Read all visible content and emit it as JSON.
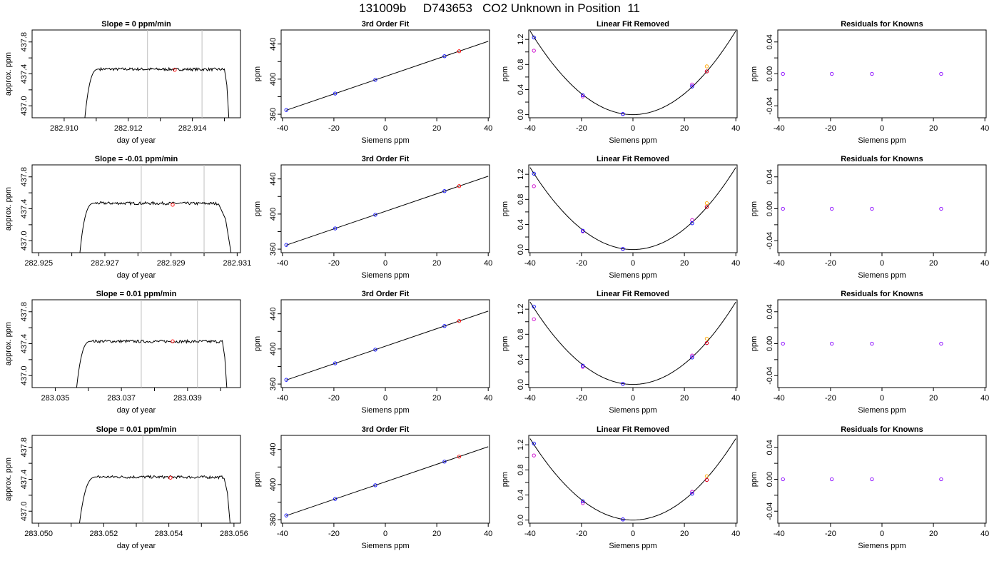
{
  "page": {
    "title": "131009b     D743653   CO2 Unknown in Position  11"
  },
  "colors": {
    "trace": "#000000",
    "marker_line": "#bfbfbf",
    "point_red": "#ff0000",
    "point_blue": "#0000ff",
    "point_magenta": "#cc00cc",
    "point_purple": "#8800ff",
    "point_orange": "#ffa500"
  },
  "chart_data": [
    {
      "row": 1,
      "type": "line",
      "title": "Slope =  0  ppm/min",
      "xlabel": "day of year",
      "ylabel": "approx. ppm",
      "xlim": [
        282.909,
        282.9155
      ],
      "xticks": [
        "282.910",
        "282.912",
        "282.914"
      ],
      "xtick_values": [
        282.91,
        282.912,
        282.914
      ],
      "xminor": [
        282.911,
        282.913,
        282.915
      ],
      "ylim": [
        436.85,
        437.95
      ],
      "yticks": [
        "437.0",
        "437.4",
        "437.8"
      ],
      "ytick_values": [
        437.0,
        437.4,
        437.8
      ],
      "yminor": [
        437.2,
        437.6
      ],
      "rise_start": 282.9106,
      "plateau_start": 282.9111,
      "fall_start": 282.915,
      "fall_end": 282.91515,
      "plateau": 437.46,
      "vlines": [
        282.9126,
        282.9143
      ],
      "marker": {
        "x": 282.91345,
        "y": 437.45
      }
    },
    {
      "row": 1,
      "type": "scatter",
      "title": "3rd Order Fit",
      "xlabel": "Siemens ppm",
      "ylabel": "ppm",
      "xlim": [
        -40.5,
        40.5
      ],
      "xticks": [
        "-40",
        "-20",
        "0",
        "20",
        "40"
      ],
      "xtick_values": [
        -40,
        -20,
        0,
        20,
        40
      ],
      "ylim": [
        356,
        456
      ],
      "yticks": [
        "360",
        "400",
        "440"
      ],
      "ytick_values": [
        360,
        400,
        440
      ],
      "yminor": [
        380,
        420
      ],
      "fit": {
        "intercept": 403.1,
        "slope": 1.0
      },
      "knowns": {
        "x": [
          -38.5,
          -19.5,
          -3.9,
          23,
          28.7
        ],
        "y": [
          364.8,
          383.6,
          399.2,
          426.1,
          431.8
        ]
      }
    },
    {
      "row": 1,
      "type": "scatter",
      "title": "Linear Fit Removed",
      "xlabel": "Siemens ppm",
      "ylabel": "ppm",
      "xlim": [
        -40.5,
        40.5
      ],
      "xticks": [
        "-40",
        "-20",
        "0",
        "20",
        "40"
      ],
      "xtick_values": [
        -40,
        -20,
        0,
        20,
        40
      ],
      "ylim": [
        -0.05,
        1.35
      ],
      "yticks": [
        "0.0",
        "0.4",
        "0.8",
        "1.2"
      ],
      "ytick_values": [
        0,
        0.4,
        0.8,
        1.2
      ],
      "yminor": [
        0.2,
        0.6,
        1.0
      ],
      "curve_k": 0.000835,
      "blue": {
        "x": [
          -38.5,
          -19.5,
          -3.9,
          23,
          28.7
        ],
        "y": [
          1.23,
          0.31,
          0.01,
          0.45,
          0.69
        ]
      },
      "magenta": {
        "x": [
          -38.5,
          -19.5,
          -3.9,
          23
        ],
        "y": [
          1.02,
          0.29,
          0.01,
          0.48
        ]
      },
      "red": {
        "x": [
          28.7
        ],
        "y": [
          0.69
        ]
      },
      "orange": {
        "x": [
          28.7
        ],
        "y": [
          0.77
        ]
      }
    },
    {
      "row": 1,
      "type": "scatter",
      "title": "Residuals for Knowns",
      "xlabel": "Siemens ppm",
      "ylabel": "ppm",
      "xlim": [
        -40.5,
        40.5
      ],
      "xticks": [
        "-40",
        "-20",
        "0",
        "20",
        "40"
      ],
      "xtick_values": [
        -40,
        -20,
        0,
        20,
        40
      ],
      "ylim": [
        -0.055,
        0.055
      ],
      "yticks": [
        "-0.04",
        "0.00",
        "0.04"
      ],
      "ytick_values": [
        -0.04,
        0,
        0.04
      ],
      "yminor": [
        -0.02,
        0.02
      ],
      "residuals": {
        "x": [
          -38.5,
          -19.5,
          -3.9,
          23
        ],
        "y": [
          0,
          0,
          0,
          0
        ]
      }
    },
    {
      "row": 2,
      "type": "line",
      "title": "Slope =  -0.01  ppm/min",
      "xlabel": "day of year",
      "ylabel": "approx. ppm",
      "xlim": [
        282.9248,
        282.9311
      ],
      "xticks": [
        "282.925",
        "282.927",
        "282.929",
        "282.931"
      ],
      "xtick_values": [
        282.925,
        282.927,
        282.929,
        282.931
      ],
      "xminor": [
        282.926,
        282.928,
        282.93
      ],
      "ylim": [
        436.85,
        437.95
      ],
      "yticks": [
        "437.0",
        "437.4",
        "437.8"
      ],
      "ytick_values": [
        437.0,
        437.4,
        437.8
      ],
      "yminor": [
        437.2,
        437.6
      ],
      "rise_start": 282.9262,
      "plateau_start": 282.9267,
      "fall_start": 282.93045,
      "fall_end": 282.93085,
      "plateau": 437.47,
      "vlines": [
        282.9281,
        282.93
      ],
      "marker": {
        "x": 282.92905,
        "y": 437.45
      }
    },
    {
      "row": 2,
      "type": "scatter",
      "title": "3rd Order Fit",
      "xlabel": "Siemens ppm",
      "ylabel": "ppm",
      "xlim": [
        -40.5,
        40.5
      ],
      "xticks": [
        "-40",
        "-20",
        "0",
        "20",
        "40"
      ],
      "xtick_values": [
        -40,
        -20,
        0,
        20,
        40
      ],
      "ylim": [
        356,
        456
      ],
      "yticks": [
        "360",
        "400",
        "440"
      ],
      "ytick_values": [
        360,
        400,
        440
      ],
      "yminor": [
        380,
        420
      ],
      "fit": {
        "intercept": 403.1,
        "slope": 1.0
      },
      "knowns": {
        "x": [
          -38.5,
          -19.5,
          -3.9,
          23,
          28.7
        ],
        "y": [
          364.8,
          383.6,
          399.2,
          426.1,
          431.8
        ]
      }
    },
    {
      "row": 2,
      "type": "scatter",
      "title": "Linear Fit Removed",
      "xlabel": "Siemens ppm",
      "ylabel": "ppm",
      "xlim": [
        -40.5,
        40.5
      ],
      "xticks": [
        "-40",
        "-20",
        "0",
        "20",
        "40"
      ],
      "xtick_values": [
        -40,
        -20,
        0,
        20,
        40
      ],
      "ylim": [
        -0.05,
        1.35
      ],
      "yticks": [
        "0.0",
        "0.4",
        "0.8",
        "1.2"
      ],
      "ytick_values": [
        0,
        0.4,
        0.8,
        1.2
      ],
      "yminor": [
        0.2,
        0.6,
        1.0
      ],
      "curve_k": 0.000818,
      "blue": {
        "x": [
          -38.5,
          -19.5,
          -3.9,
          23,
          28.7
        ],
        "y": [
          1.21,
          0.3,
          0.01,
          0.42,
          0.68
        ]
      },
      "magenta": {
        "x": [
          -38.5,
          -19.5,
          -3.9,
          23
        ],
        "y": [
          1.01,
          0.29,
          0.01,
          0.47
        ]
      },
      "red": {
        "x": [
          28.7
        ],
        "y": [
          0.68
        ]
      },
      "orange": {
        "x": [
          28.7
        ],
        "y": [
          0.74
        ]
      }
    },
    {
      "row": 2,
      "type": "scatter",
      "title": "Residuals for Knowns",
      "xlabel": "Siemens ppm",
      "ylabel": "ppm",
      "xlim": [
        -40.5,
        40.5
      ],
      "xticks": [
        "-40",
        "-20",
        "0",
        "20",
        "40"
      ],
      "xtick_values": [
        -40,
        -20,
        0,
        20,
        40
      ],
      "ylim": [
        -0.055,
        0.055
      ],
      "yticks": [
        "-0.04",
        "0.00",
        "0.04"
      ],
      "ytick_values": [
        -0.04,
        0,
        0.04
      ],
      "yminor": [
        -0.02,
        0.02
      ],
      "residuals": {
        "x": [
          -38.5,
          -19.5,
          -3.9,
          23
        ],
        "y": [
          0,
          0,
          0,
          0
        ]
      }
    },
    {
      "row": 3,
      "type": "line",
      "title": "Slope =  0.01  ppm/min",
      "xlabel": "day of year",
      "ylabel": "approx. ppm",
      "xlim": [
        283.0343,
        283.0406
      ],
      "xticks": [
        "283.035",
        "283.037",
        "283.039"
      ],
      "xtick_values": [
        283.035,
        283.037,
        283.039
      ],
      "xminor": [
        283.036,
        283.038,
        283.04
      ],
      "ylim": [
        436.85,
        437.95
      ],
      "yticks": [
        "437.0",
        "437.4",
        "437.8"
      ],
      "ytick_values": [
        437.0,
        437.4,
        437.8
      ],
      "yminor": [
        437.2,
        437.6
      ],
      "rise_start": 283.0356,
      "plateau_start": 283.0361,
      "fall_start": 283.04005,
      "fall_end": 283.0402,
      "plateau": 437.43,
      "vlines": [
        283.0376,
        283.0393
      ],
      "marker": {
        "x": 283.03855,
        "y": 437.43
      }
    },
    {
      "row": 3,
      "type": "scatter",
      "title": "3rd Order Fit",
      "xlabel": "Siemens ppm",
      "ylabel": "ppm",
      "xlim": [
        -40.5,
        40.5
      ],
      "xticks": [
        "-40",
        "-20",
        "0",
        "20",
        "40"
      ],
      "xtick_values": [
        -40,
        -20,
        0,
        20,
        40
      ],
      "ylim": [
        356,
        456
      ],
      "yticks": [
        "360",
        "400",
        "440"
      ],
      "ytick_values": [
        360,
        400,
        440
      ],
      "yminor": [
        380,
        420
      ],
      "fit": {
        "intercept": 403.1,
        "slope": 1.0
      },
      "knowns": {
        "x": [
          -38.5,
          -19.5,
          -3.9,
          23,
          28.7
        ],
        "y": [
          364.8,
          383.6,
          399.2,
          426.1,
          431.8
        ]
      }
    },
    {
      "row": 3,
      "type": "scatter",
      "title": "Linear Fit Removed",
      "xlabel": "Siemens ppm",
      "ylabel": "ppm",
      "xlim": [
        -40.5,
        40.5
      ],
      "xticks": [
        "-40",
        "-20",
        "0",
        "20",
        "40"
      ],
      "xtick_values": [
        -40,
        -20,
        0,
        20,
        40
      ],
      "ylim": [
        -0.05,
        1.35
      ],
      "yticks": [
        "0.0",
        "0.4",
        "0.8",
        "1.2"
      ],
      "ytick_values": [
        0,
        0.4,
        0.8,
        1.2
      ],
      "yminor": [
        0.2,
        0.6,
        1.0
      ],
      "curve_k": 0.000822,
      "blue": {
        "x": [
          -38.5,
          -19.5,
          -3.9,
          23,
          28.7
        ],
        "y": [
          1.24,
          0.3,
          0.01,
          0.43,
          0.66
        ]
      },
      "magenta": {
        "x": [
          -38.5,
          -19.5,
          -3.9,
          23
        ],
        "y": [
          1.04,
          0.28,
          0.01,
          0.46
        ]
      },
      "red": {
        "x": [
          28.7
        ],
        "y": [
          0.66
        ]
      },
      "orange": {
        "x": [
          28.7
        ],
        "y": [
          0.73
        ]
      }
    },
    {
      "row": 3,
      "type": "scatter",
      "title": "Residuals for Knowns",
      "xlabel": "Siemens ppm",
      "ylabel": "ppm",
      "xlim": [
        -40.5,
        40.5
      ],
      "xticks": [
        "-40",
        "-20",
        "0",
        "20",
        "40"
      ],
      "xtick_values": [
        -40,
        -20,
        0,
        20,
        40
      ],
      "ylim": [
        -0.055,
        0.055
      ],
      "yticks": [
        "-0.04",
        "0.00",
        "0.04"
      ],
      "ytick_values": [
        -0.04,
        0,
        0.04
      ],
      "yminor": [
        -0.02,
        0.02
      ],
      "residuals": {
        "x": [
          -38.5,
          -19.5,
          -3.9,
          23
        ],
        "y": [
          0,
          0,
          0,
          0
        ]
      }
    },
    {
      "row": 4,
      "type": "line",
      "title": "Slope =  0.01  ppm/min",
      "xlabel": "day of year",
      "ylabel": "approx. ppm",
      "xlim": [
        283.0498,
        283.0562
      ],
      "xticks": [
        "283.050",
        "283.052",
        "283.054",
        "283.056"
      ],
      "xtick_values": [
        283.05,
        283.052,
        283.054,
        283.056
      ],
      "xminor": [
        283.051,
        283.053,
        283.055
      ],
      "ylim": [
        436.85,
        437.95
      ],
      "yticks": [
        "437.0",
        "437.4",
        "437.8"
      ],
      "ytick_values": [
        437.0,
        437.4,
        437.8
      ],
      "yminor": [
        437.2,
        437.6
      ],
      "rise_start": 283.0512,
      "plateau_start": 283.0518,
      "fall_start": 283.0557,
      "fall_end": 283.0559,
      "plateau": 437.43,
      "vlines": [
        283.0532,
        283.0549
      ],
      "marker": {
        "x": 283.05405,
        "y": 437.42
      }
    },
    {
      "row": 4,
      "type": "scatter",
      "title": "3rd Order Fit",
      "xlabel": "Siemens ppm",
      "ylabel": "ppm",
      "xlim": [
        -40.5,
        40.5
      ],
      "xticks": [
        "-40",
        "-20",
        "0",
        "20",
        "40"
      ],
      "xtick_values": [
        -40,
        -20,
        0,
        20,
        40
      ],
      "ylim": [
        356,
        456
      ],
      "yticks": [
        "360",
        "400",
        "440"
      ],
      "ytick_values": [
        360,
        400,
        440
      ],
      "yminor": [
        380,
        420
      ],
      "fit": {
        "intercept": 403.1,
        "slope": 1.0
      },
      "knowns": {
        "x": [
          -38.5,
          -19.5,
          -3.9,
          23,
          28.7
        ],
        "y": [
          364.8,
          383.6,
          399.2,
          426.1,
          431.8
        ]
      }
    },
    {
      "row": 4,
      "type": "scatter",
      "title": "Linear Fit Removed",
      "xlabel": "Siemens ppm",
      "ylabel": "ppm",
      "xlim": [
        -40.5,
        40.5
      ],
      "xticks": [
        "-40",
        "-20",
        "0",
        "20",
        "40"
      ],
      "xtick_values": [
        -40,
        -20,
        0,
        20,
        40
      ],
      "ylim": [
        -0.05,
        1.35
      ],
      "yticks": [
        "0.0",
        "0.4",
        "0.8",
        "1.2"
      ],
      "ytick_values": [
        0,
        0.4,
        0.8,
        1.2
      ],
      "yminor": [
        0.2,
        0.6,
        1.0
      ],
      "curve_k": 0.000812,
      "blue": {
        "x": [
          -38.5,
          -19.5,
          -3.9,
          23,
          28.7
        ],
        "y": [
          1.22,
          0.3,
          0.01,
          0.42,
          0.64
        ]
      },
      "magenta": {
        "x": [
          -38.5,
          -19.5,
          -3.9,
          23
        ],
        "y": [
          1.03,
          0.27,
          0.01,
          0.45
        ]
      },
      "red": {
        "x": [
          28.7
        ],
        "y": [
          0.64
        ]
      },
      "orange": {
        "x": [
          28.7
        ],
        "y": [
          0.7
        ]
      }
    },
    {
      "row": 4,
      "type": "scatter",
      "title": "Residuals for Knowns",
      "xlabel": "Siemens ppm",
      "ylabel": "ppm",
      "xlim": [
        -40.5,
        40.5
      ],
      "xticks": [
        "-40",
        "-20",
        "0",
        "20",
        "40"
      ],
      "xtick_values": [
        -40,
        -20,
        0,
        20,
        40
      ],
      "ylim": [
        -0.055,
        0.055
      ],
      "yticks": [
        "-0.04",
        "0.00",
        "0.04"
      ],
      "ytick_values": [
        -0.04,
        0,
        0.04
      ],
      "yminor": [
        -0.02,
        0.02
      ],
      "residuals": {
        "x": [
          -38.5,
          -19.5,
          -3.9,
          23
        ],
        "y": [
          0,
          0,
          0,
          0
        ]
      }
    }
  ]
}
